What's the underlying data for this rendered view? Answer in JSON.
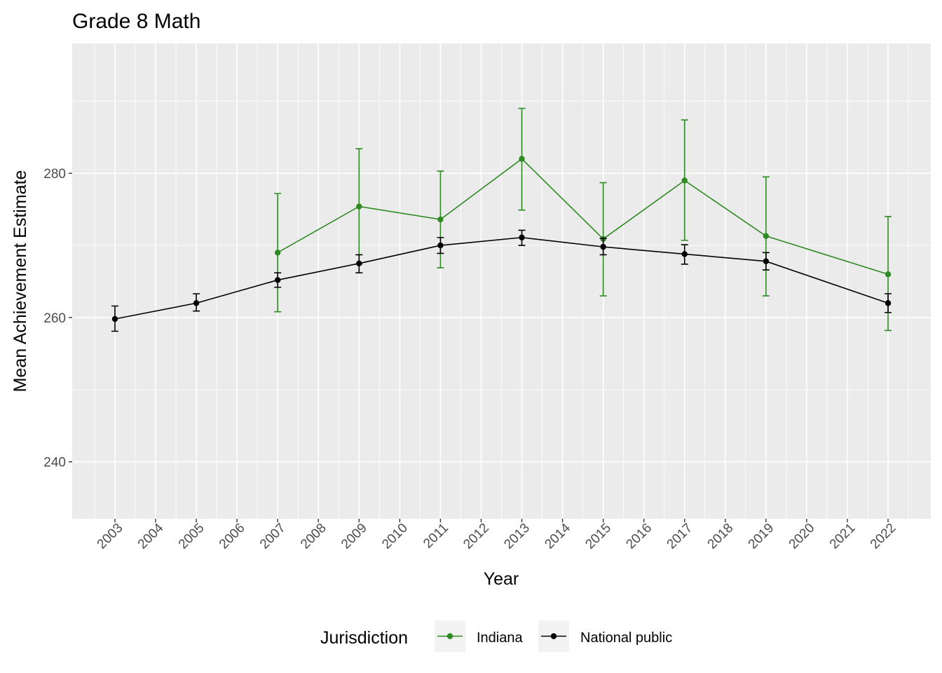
{
  "chart_data": {
    "type": "line",
    "title": "Grade 8 Math",
    "xlabel": "Year",
    "ylabel": "Mean Achievement Estimate",
    "xlim": [
      2001.95,
      2023.05
    ],
    "ylim": [
      232.1,
      298.0
    ],
    "x_ticks": [
      "2003",
      "2004",
      "2005",
      "2006",
      "2007",
      "2008",
      "2009",
      "2010",
      "2011",
      "2012",
      "2013",
      "2014",
      "2015",
      "2016",
      "2017",
      "2018",
      "2019",
      "2020",
      "2021",
      "2022"
    ],
    "y_ticks": [
      "240",
      "260",
      "280"
    ],
    "grid": true,
    "legend": {
      "title": "Jurisdiction",
      "position": "bottom",
      "entries": [
        "Indiana",
        "National public"
      ]
    },
    "series": [
      {
        "name": "Indiana",
        "color": "#2E8B22",
        "x": [
          2007,
          2009,
          2011,
          2013,
          2015,
          2017,
          2019,
          2022
        ],
        "y": [
          269.0,
          275.4,
          273.6,
          282.0,
          270.9,
          279.0,
          271.3,
          266.0
        ],
        "lower": [
          260.8,
          267.4,
          266.9,
          274.9,
          263.0,
          270.7,
          263.0,
          258.2
        ],
        "upper": [
          277.2,
          283.4,
          280.3,
          289.0,
          278.7,
          287.4,
          279.5,
          274.0
        ]
      },
      {
        "name": "National public",
        "color": "#000000",
        "x": [
          2003,
          2005,
          2007,
          2009,
          2011,
          2013,
          2015,
          2017,
          2019,
          2022
        ],
        "y": [
          259.8,
          262.0,
          265.2,
          267.5,
          270.0,
          271.1,
          269.8,
          268.8,
          267.8,
          262.0
        ],
        "lower": [
          258.1,
          260.9,
          264.2,
          266.2,
          268.9,
          270.0,
          268.7,
          267.4,
          266.6,
          260.7
        ],
        "upper": [
          261.6,
          263.3,
          266.2,
          268.7,
          271.1,
          272.1,
          271.0,
          270.1,
          269.0,
          263.3
        ]
      }
    ]
  }
}
